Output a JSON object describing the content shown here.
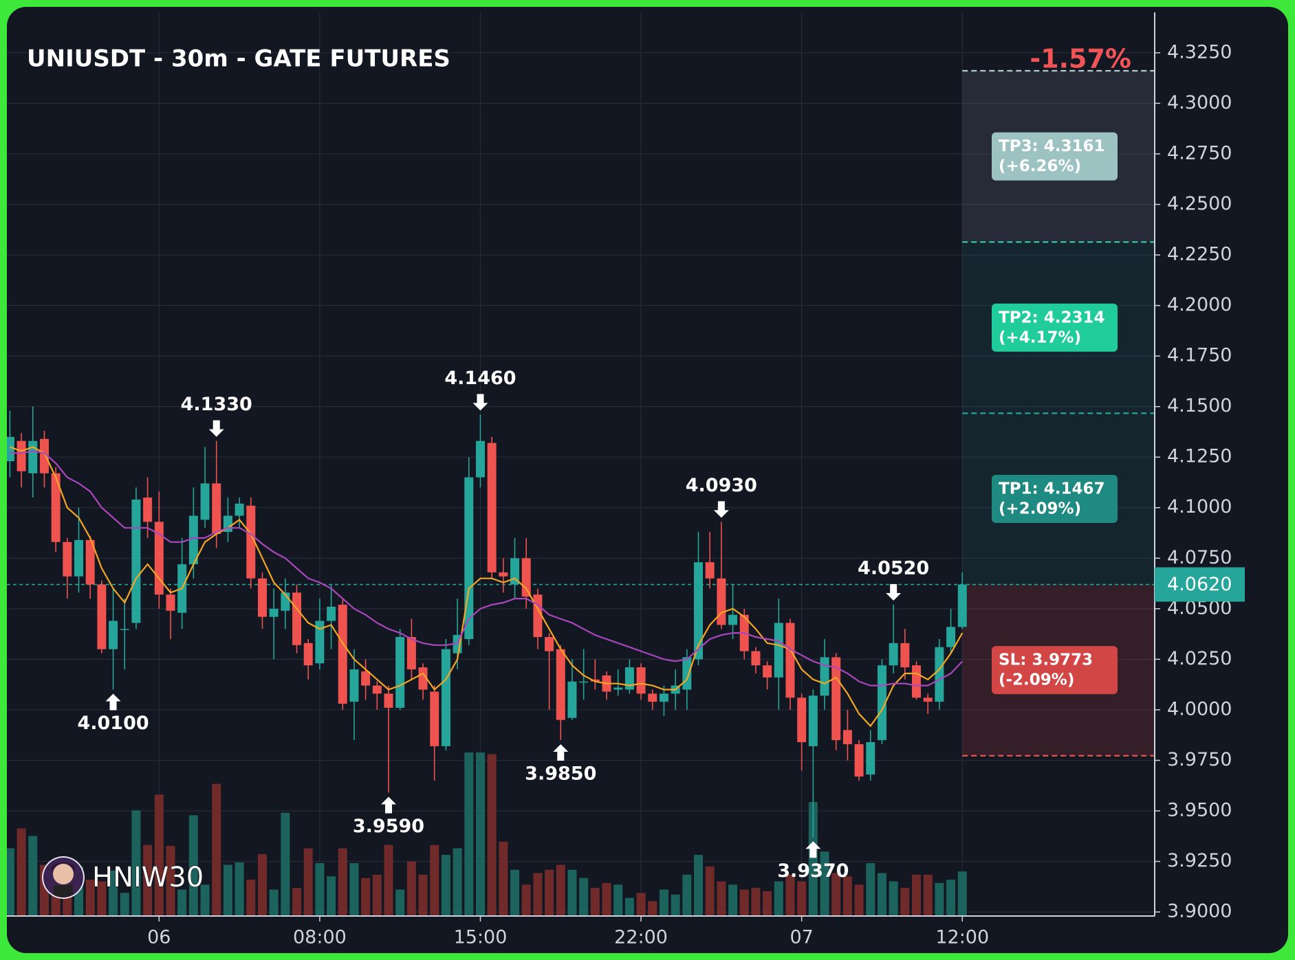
{
  "chart_data": {
    "type": "candlestick",
    "title": "UNIUSDT - 30m - GATE FUTURES",
    "change_label": "-1.57%",
    "watermark": "HNIW30",
    "categories": [
      null,
      null,
      null,
      null,
      null,
      null,
      null,
      null,
      null,
      null,
      null,
      null,
      null,
      "06",
      null,
      null,
      null,
      null,
      null,
      null,
      null,
      null,
      null,
      null,
      null,
      null,
      null,
      "08:00",
      null,
      null,
      null,
      null,
      null,
      null,
      null,
      null,
      null,
      null,
      null,
      null,
      null,
      "15:00",
      null,
      null,
      null,
      null,
      null,
      null,
      null,
      null,
      null,
      null,
      null,
      null,
      null,
      "22:00",
      null,
      null,
      null,
      null,
      null,
      null,
      null,
      null,
      null,
      null,
      null,
      null,
      null,
      "07",
      null,
      null,
      null,
      null,
      null,
      null,
      null,
      null,
      null,
      null,
      null,
      null,
      null,
      "12:00"
    ],
    "open": [
      4.123,
      4.133,
      4.117,
      4.134,
      4.117,
      4.083,
      4.066,
      4.084,
      4.062,
      4.03,
      4.04,
      4.043,
      4.105,
      4.093,
      4.057,
      4.048,
      4.072,
      4.094,
      4.112,
      4.088,
      4.096,
      4.101,
      4.065,
      4.046,
      4.049,
      4.058,
      4.033,
      4.023,
      4.044,
      4.052,
      4.004,
      4.019,
      4.012,
      4.008,
      4.001,
      4.036,
      4.021,
      4.009,
      3.982,
      4.028,
      4.035,
      4.115,
      4.132,
      4.068,
      4.062,
      4.075,
      4.057,
      4.036,
      4.03,
      3.996,
      4.014,
      4.015,
      4.017,
      4.01,
      4.01,
      4.021,
      4.008,
      4.004,
      4.008,
      4.01,
      4.025,
      4.073,
      4.065,
      4.042,
      4.047,
      4.029,
      4.022,
      4.016,
      4.043,
      4.006,
      3.982,
      4.007,
      4.026,
      3.99,
      3.983,
      3.968,
      3.985,
      4.022,
      4.033,
      4.022,
      4.006,
      4.004,
      4.031,
      4.041
    ],
    "high": [
      4.148,
      4.137,
      4.15,
      4.138,
      4.12,
      4.085,
      4.1,
      4.086,
      4.064,
      4.06,
      4.055,
      4.11,
      4.115,
      4.108,
      4.06,
      4.085,
      4.11,
      4.13,
      4.133,
      4.105,
      4.105,
      4.105,
      4.068,
      4.06,
      4.065,
      4.062,
      4.035,
      4.055,
      4.062,
      4.055,
      4.03,
      4.025,
      4.014,
      4.012,
      4.04,
      4.045,
      4.023,
      4.012,
      4.035,
      4.055,
      4.125,
      4.146,
      4.135,
      4.075,
      4.085,
      4.085,
      4.06,
      4.038,
      4.032,
      4.025,
      4.03,
      4.025,
      4.019,
      4.02,
      4.025,
      4.023,
      4.01,
      4.012,
      4.02,
      4.03,
      4.088,
      4.088,
      4.093,
      4.062,
      4.05,
      4.031,
      4.024,
      4.055,
      4.045,
      4.008,
      4.01,
      4.035,
      4.028,
      4.0,
      3.985,
      3.99,
      4.025,
      4.052,
      4.04,
      4.024,
      4.008,
      4.035,
      4.05,
      4.068
    ],
    "low": [
      4.115,
      4.11,
      4.105,
      4.11,
      4.078,
      4.055,
      4.058,
      4.055,
      4.028,
      4.01,
      4.02,
      4.04,
      4.085,
      4.05,
      4.035,
      4.04,
      4.065,
      4.09,
      4.08,
      4.083,
      4.09,
      4.06,
      4.04,
      4.025,
      4.04,
      4.028,
      4.015,
      4.02,
      4.03,
      4.0,
      3.985,
      4.005,
      4.0,
      3.959,
      4.0,
      4.015,
      4.005,
      3.965,
      3.98,
      4.02,
      4.032,
      4.11,
      4.065,
      4.058,
      4.055,
      4.05,
      4.03,
      4.0,
      3.985,
      3.995,
      4.005,
      4.01,
      4.005,
      4.007,
      4.008,
      4.005,
      4.0,
      3.997,
      4.0,
      4.0,
      4.022,
      4.06,
      4.04,
      4.035,
      4.025,
      4.018,
      4.01,
      4.0,
      4.0,
      3.97,
      3.937,
      4.0,
      3.98,
      3.975,
      3.965,
      3.965,
      3.983,
      4.018,
      4.015,
      4.005,
      3.998,
      4.0,
      4.028,
      4.04
    ],
    "close": [
      4.135,
      4.118,
      4.133,
      4.117,
      4.083,
      4.066,
      4.084,
      4.062,
      4.03,
      4.044,
      4.04,
      4.104,
      4.093,
      4.057,
      4.049,
      4.072,
      4.096,
      4.112,
      4.087,
      4.096,
      4.102,
      4.065,
      4.046,
      4.05,
      4.058,
      4.032,
      4.022,
      4.044,
      4.051,
      4.003,
      4.02,
      4.012,
      4.008,
      4.001,
      4.036,
      4.02,
      4.01,
      3.982,
      4.03,
      4.037,
      4.115,
      4.133,
      4.068,
      4.066,
      4.075,
      4.056,
      4.036,
      4.029,
      3.995,
      4.014,
      4.014,
      4.014,
      4.009,
      4.011,
      4.021,
      4.008,
      4.004,
      4.008,
      4.012,
      4.026,
      4.073,
      4.065,
      4.042,
      4.047,
      4.029,
      4.022,
      4.016,
      4.043,
      4.006,
      3.984,
      4.007,
      4.026,
      3.985,
      3.983,
      3.967,
      3.984,
      4.022,
      4.033,
      4.021,
      4.006,
      4.004,
      4.031,
      4.041,
      4.062
    ],
    "volume": [
      82,
      106,
      97,
      62,
      55,
      42,
      60,
      44,
      42,
      55,
      28,
      128,
      86,
      147,
      85,
      32,
      122,
      38,
      160,
      62,
      65,
      44,
      75,
      32,
      125,
      34,
      82,
      64,
      48,
      82,
      64,
      46,
      50,
      86,
      32,
      66,
      50,
      86,
      74,
      82,
      198,
      198,
      196,
      90,
      56,
      38,
      52,
      56,
      62,
      56,
      46,
      34,
      40,
      38,
      22,
      28,
      18,
      32,
      26,
      50,
      74,
      60,
      42,
      38,
      32,
      34,
      30,
      42,
      50,
      42,
      138,
      78,
      52,
      48,
      38,
      64,
      52,
      42,
      34,
      50,
      50,
      40,
      44,
      54
    ],
    "up_color": "#26a69a",
    "down_color": "#ef5350",
    "volume_up_color": "#1c635d",
    "volume_down_color": "#702a2a",
    "ma": [
      {
        "color": "#f5a623",
        "values": [
          4.13,
          4.128,
          4.13,
          4.127,
          4.115,
          4.1,
          4.095,
          4.085,
          4.07,
          4.06,
          4.053,
          4.065,
          4.072,
          4.065,
          4.058,
          4.06,
          4.072,
          4.083,
          4.087,
          4.09,
          4.094,
          4.087,
          4.075,
          4.063,
          4.057,
          4.05,
          4.043,
          4.04,
          4.042,
          4.033,
          4.025,
          4.02,
          4.015,
          4.01,
          4.012,
          4.015,
          4.018,
          4.01,
          4.015,
          4.025,
          4.06,
          4.065,
          4.065,
          4.063,
          4.065,
          4.06,
          4.05,
          4.04,
          4.03,
          4.022,
          4.017,
          4.014,
          4.013,
          4.013,
          4.012,
          4.013,
          4.012,
          4.01,
          4.01,
          4.015,
          4.032,
          4.042,
          4.048,
          4.05,
          4.046,
          4.04,
          4.033,
          4.032,
          4.03,
          4.02,
          4.015,
          4.013,
          4.016,
          4.008,
          3.998,
          3.992,
          4.0,
          4.012,
          4.018,
          4.018,
          4.015,
          4.02,
          4.028,
          4.038
        ]
      },
      {
        "color": "#ab47bc",
        "values": [
          4.127,
          4.127,
          4.128,
          4.127,
          4.122,
          4.115,
          4.112,
          4.108,
          4.1,
          4.095,
          4.09,
          4.09,
          4.09,
          4.087,
          4.083,
          4.083,
          4.085,
          4.085,
          4.088,
          4.09,
          4.09,
          4.087,
          4.082,
          4.078,
          4.075,
          4.07,
          4.065,
          4.063,
          4.06,
          4.055,
          4.05,
          4.047,
          4.043,
          4.04,
          4.038,
          4.035,
          4.033,
          4.032,
          4.032,
          4.033,
          4.045,
          4.05,
          4.052,
          4.053,
          4.055,
          4.055,
          4.052,
          4.047,
          4.045,
          4.043,
          4.04,
          4.037,
          4.035,
          4.033,
          4.031,
          4.029,
          4.027,
          4.025,
          4.024,
          4.025,
          4.03,
          4.035,
          4.037,
          4.038,
          4.038,
          4.036,
          4.035,
          4.034,
          4.03,
          4.027,
          4.024,
          4.022,
          4.021,
          4.018,
          4.014,
          4.012,
          4.012,
          4.013,
          4.013,
          4.012,
          4.012,
          4.015,
          4.018,
          4.024
        ]
      }
    ],
    "annotations": [
      {
        "index": 9,
        "value": 4.01,
        "label": "4.0100",
        "kind": "low"
      },
      {
        "index": 18,
        "value": 4.133,
        "label": "4.1330",
        "kind": "high"
      },
      {
        "index": 33,
        "value": 3.959,
        "label": "3.9590",
        "kind": "low"
      },
      {
        "index": 41,
        "value": 4.146,
        "label": "4.1460",
        "kind": "high"
      },
      {
        "index": 48,
        "value": 3.985,
        "label": "3.9850",
        "kind": "low"
      },
      {
        "index": 62,
        "value": 4.093,
        "label": "4.0930",
        "kind": "high"
      },
      {
        "index": 70,
        "value": 3.937,
        "label": "3.9370",
        "kind": "low"
      },
      {
        "index": 77,
        "value": 4.052,
        "label": "4.0520",
        "kind": "high"
      }
    ],
    "entry": {
      "value": 4.062,
      "label": "4.0620",
      "color": "#26a69a"
    },
    "levels": [
      {
        "value": 4.1467,
        "label": "TP1: 4.1467",
        "pct_label": "(+2.09%)",
        "color": "#1f8a81",
        "line_color": "#26a69a",
        "zone": "rgba(38,166,154,0.10)"
      },
      {
        "value": 4.2314,
        "label": "TP2: 4.2314",
        "pct_label": "(+4.17%)",
        "color": "#1fcc9a",
        "line_color": "#2ad6b0",
        "zone": "rgba(38,166,154,0.10)"
      },
      {
        "value": 4.3161,
        "label": "TP3: 4.3161",
        "pct_label": "(+6.26%)",
        "color": "#9cc3c2",
        "line_color": "#b5cccc",
        "zone": "rgba(140,150,170,0.16)"
      },
      {
        "value": 3.9773,
        "label": "SL: 3.9773",
        "pct_label": "(-2.09%)",
        "color": "#d24646",
        "line_color": "#ef5350",
        "zone": "rgba(239,83,80,0.15)"
      }
    ],
    "ylim": [
      3.898,
      4.345
    ],
    "yticks": [
      {
        "value": 3.9,
        "label": "3.9000"
      },
      {
        "value": 3.925,
        "label": "3.9250"
      },
      {
        "value": 3.95,
        "label": "3.9500"
      },
      {
        "value": 3.975,
        "label": "3.9750"
      },
      {
        "value": 4.0,
        "label": "4.0000"
      },
      {
        "value": 4.025,
        "label": "4.0250"
      },
      {
        "value": 4.05,
        "label": "4.0500"
      },
      {
        "value": 4.075,
        "label": "4.0750"
      },
      {
        "value": 4.1,
        "label": "4.1000"
      },
      {
        "value": 4.125,
        "label": "4.1250"
      },
      {
        "value": 4.15,
        "label": "4.1500"
      },
      {
        "value": 4.175,
        "label": "4.1750"
      },
      {
        "value": 4.2,
        "label": "4.2000"
      },
      {
        "value": 4.225,
        "label": "4.2250"
      },
      {
        "value": 4.25,
        "label": "4.2500"
      },
      {
        "value": 4.275,
        "label": "4.2750"
      },
      {
        "value": 4.3,
        "label": "4.3000"
      },
      {
        "value": 4.325,
        "label": "4.3250"
      }
    ],
    "grid": true
  }
}
